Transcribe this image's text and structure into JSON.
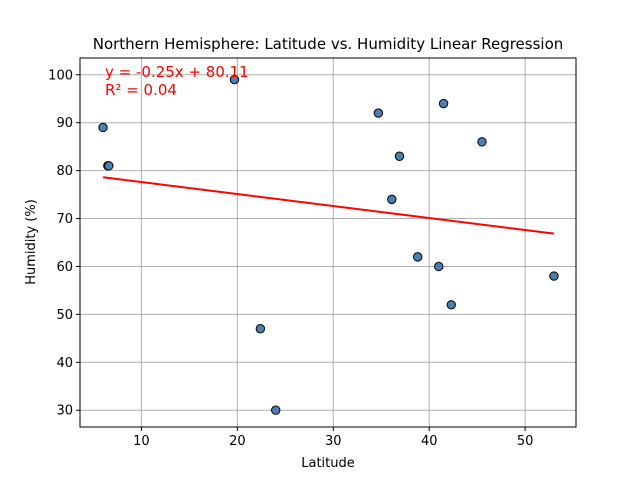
{
  "chart_data": {
    "type": "scatter",
    "title": "Northern Hemisphere: Latitude vs. Humidity Linear Regression",
    "xlabel": "Latitude",
    "ylabel": "Humidity (%)",
    "xlim": [
      3.6,
      55.3
    ],
    "ylim": [
      26.5,
      103.5
    ],
    "xticks": [
      10,
      20,
      30,
      40,
      50
    ],
    "yticks": [
      30,
      40,
      50,
      60,
      70,
      80,
      90,
      100
    ],
    "grid": true,
    "points": [
      {
        "x": 6.0,
        "y": 89
      },
      {
        "x": 6.5,
        "y": 81
      },
      {
        "x": 6.6,
        "y": 81
      },
      {
        "x": 19.7,
        "y": 99
      },
      {
        "x": 22.4,
        "y": 47
      },
      {
        "x": 24.0,
        "y": 30
      },
      {
        "x": 34.7,
        "y": 92
      },
      {
        "x": 36.1,
        "y": 74
      },
      {
        "x": 36.9,
        "y": 83
      },
      {
        "x": 38.8,
        "y": 62
      },
      {
        "x": 41.0,
        "y": 60
      },
      {
        "x": 41.5,
        "y": 94
      },
      {
        "x": 42.3,
        "y": 52
      },
      {
        "x": 45.5,
        "y": 86
      },
      {
        "x": 53.0,
        "y": 58
      }
    ],
    "regression": {
      "slope": -0.25,
      "intercept": 80.11,
      "x_range": [
        6.0,
        53.0
      ],
      "equation_text": "y = -0.25x + 80.11",
      "r2_text": "R² = 0.04"
    },
    "colors": {
      "marker_fill": "#4a7fb0",
      "marker_edge": "#000000",
      "regression_line": "#ff0000",
      "annotation": "#ff0000",
      "grid": "#b0b0b0"
    }
  }
}
